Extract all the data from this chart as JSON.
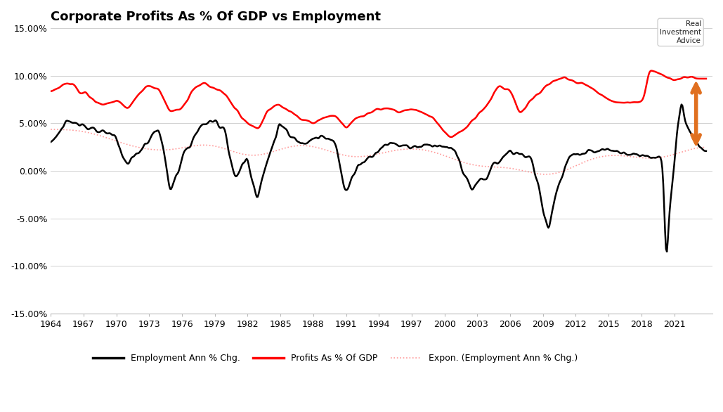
{
  "title": "Corporate Profits As % Of GDP vs Employment",
  "title_fontsize": 13,
  "background_color": "#ffffff",
  "grid_color": "#d0d0d0",
  "ylim": [
    -15,
    15
  ],
  "yticks": [
    -15,
    -10,
    -5,
    0,
    5,
    10,
    15
  ],
  "ytick_labels": [
    "-15.00%",
    "-10.00%",
    "-5.00%",
    "0.00%",
    "5.00%",
    "10.00%",
    "15.00%"
  ],
  "employment_color": "#000000",
  "profits_color": "#ff0000",
  "expon_color": "#ff9999",
  "arrow_color": "#e07020",
  "legend_labels": [
    "Employment Ann % Chg.",
    "Profits As % Of GDP",
    "Expon. (Employment Ann % Chg.)"
  ],
  "xlim_start": 1964.0,
  "xlim_end": 2024.0
}
